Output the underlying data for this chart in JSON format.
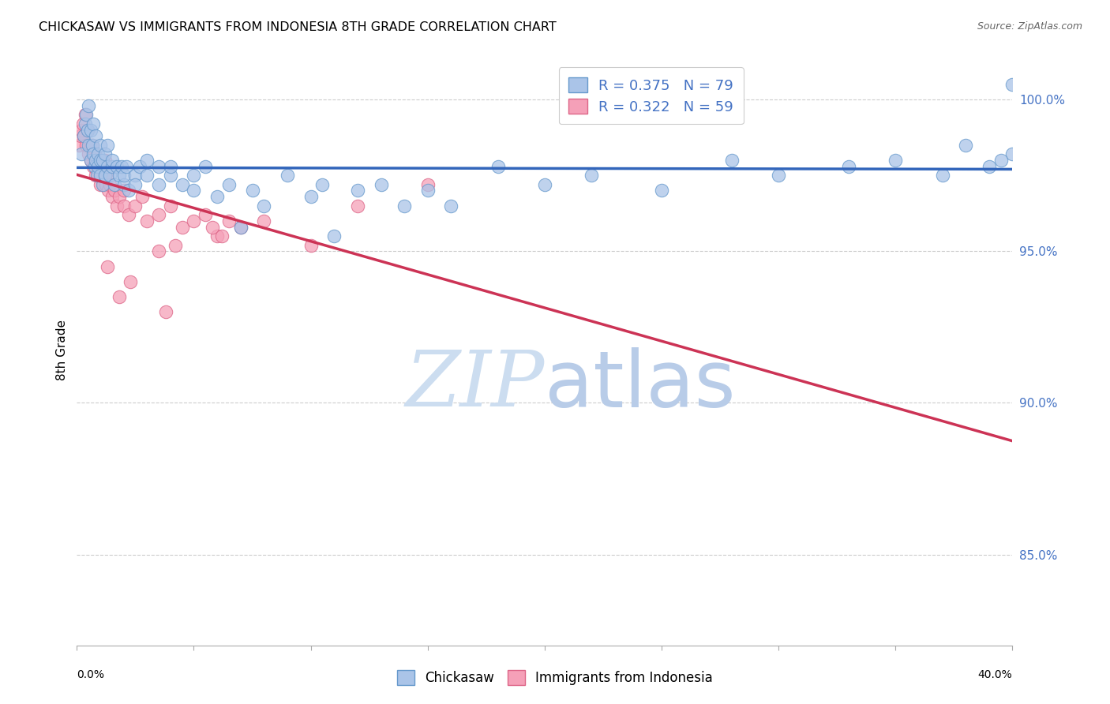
{
  "title": "CHICKASAW VS IMMIGRANTS FROM INDONESIA 8TH GRADE CORRELATION CHART",
  "source": "Source: ZipAtlas.com",
  "ylabel": "8th Grade",
  "xmin": 0.0,
  "xmax": 40.0,
  "ymin": 82.0,
  "ymax": 101.5,
  "yticks": [
    85.0,
    90.0,
    95.0,
    100.0
  ],
  "ytick_labels": [
    "85.0%",
    "90.0%",
    "95.0%",
    "100.0%"
  ],
  "legend_r1": "R = 0.375   N = 79",
  "legend_r2": "R = 0.322   N = 59",
  "chickasaw_color": "#aac4e8",
  "chickasaw_edge": "#6699cc",
  "indonesia_color": "#f5a0b8",
  "indonesia_edge": "#dd6688",
  "trendline_chickasaw": "#3366bb",
  "trendline_indonesia": "#cc3355",
  "watermark_zip": "ZIP",
  "watermark_atlas": "atlas",
  "watermark_color_zip": "#ccddf0",
  "watermark_color_atlas": "#b8cce8",
  "chickasaw_x": [
    0.2,
    0.3,
    0.35,
    0.4,
    0.45,
    0.5,
    0.5,
    0.6,
    0.6,
    0.65,
    0.7,
    0.7,
    0.75,
    0.8,
    0.8,
    0.85,
    0.9,
    0.9,
    1.0,
    1.0,
    1.0,
    1.1,
    1.1,
    1.2,
    1.2,
    1.3,
    1.3,
    1.4,
    1.5,
    1.5,
    1.6,
    1.7,
    1.8,
    1.9,
    2.0,
    2.0,
    2.1,
    2.2,
    2.5,
    2.5,
    2.7,
    3.0,
    3.0,
    3.5,
    3.5,
    4.0,
    4.0,
    4.5,
    5.0,
    5.0,
    5.5,
    6.0,
    6.5,
    7.0,
    7.5,
    8.0,
    9.0,
    10.0,
    10.5,
    11.0,
    12.0,
    13.0,
    14.0,
    15.0,
    16.0,
    18.0,
    20.0,
    22.0,
    25.0,
    28.0,
    30.0,
    33.0,
    35.0,
    37.0,
    38.0,
    39.0,
    40.0,
    39.5,
    40.0
  ],
  "chickasaw_y": [
    98.2,
    98.8,
    99.2,
    99.5,
    99.0,
    98.5,
    99.8,
    98.0,
    99.0,
    98.5,
    98.2,
    99.2,
    97.8,
    98.0,
    98.8,
    97.5,
    98.2,
    97.8,
    98.0,
    97.5,
    98.5,
    97.2,
    98.0,
    97.5,
    98.2,
    97.8,
    98.5,
    97.5,
    97.8,
    98.0,
    97.2,
    97.8,
    97.5,
    97.8,
    97.2,
    97.5,
    97.8,
    97.0,
    97.5,
    97.2,
    97.8,
    97.5,
    98.0,
    97.2,
    97.8,
    97.5,
    97.8,
    97.2,
    97.0,
    97.5,
    97.8,
    96.8,
    97.2,
    95.8,
    97.0,
    96.5,
    97.5,
    96.8,
    97.2,
    95.5,
    97.0,
    97.2,
    96.5,
    97.0,
    96.5,
    97.8,
    97.2,
    97.5,
    97.0,
    98.0,
    97.5,
    97.8,
    98.0,
    97.5,
    98.5,
    97.8,
    98.2,
    98.0,
    100.5
  ],
  "indonesia_x": [
    0.1,
    0.15,
    0.2,
    0.25,
    0.3,
    0.35,
    0.4,
    0.45,
    0.5,
    0.55,
    0.6,
    0.65,
    0.7,
    0.75,
    0.8,
    0.85,
    0.9,
    0.95,
    1.0,
    1.0,
    1.05,
    1.1,
    1.15,
    1.2,
    1.2,
    1.25,
    1.3,
    1.35,
    1.4,
    1.5,
    1.6,
    1.7,
    1.8,
    2.0,
    2.0,
    2.2,
    2.5,
    2.8,
    3.0,
    3.5,
    4.0,
    4.5,
    5.0,
    5.5,
    6.0,
    6.5,
    7.0,
    3.5,
    4.2,
    5.8,
    1.3,
    1.8,
    2.3,
    3.8,
    6.2,
    8.0,
    10.0,
    12.0,
    15.0
  ],
  "indonesia_y": [
    98.5,
    98.8,
    99.0,
    99.2,
    98.8,
    99.5,
    98.5,
    99.0,
    98.2,
    98.5,
    98.0,
    98.5,
    97.8,
    98.2,
    97.5,
    98.0,
    97.5,
    97.8,
    97.2,
    98.0,
    97.5,
    97.8,
    97.2,
    97.5,
    98.0,
    97.2,
    97.5,
    97.0,
    97.2,
    96.8,
    97.0,
    96.5,
    96.8,
    96.5,
    97.0,
    96.2,
    96.5,
    96.8,
    96.0,
    96.2,
    96.5,
    95.8,
    96.0,
    96.2,
    95.5,
    96.0,
    95.8,
    95.0,
    95.2,
    95.8,
    94.5,
    93.5,
    94.0,
    93.0,
    95.5,
    96.0,
    95.2,
    96.5,
    97.2
  ]
}
